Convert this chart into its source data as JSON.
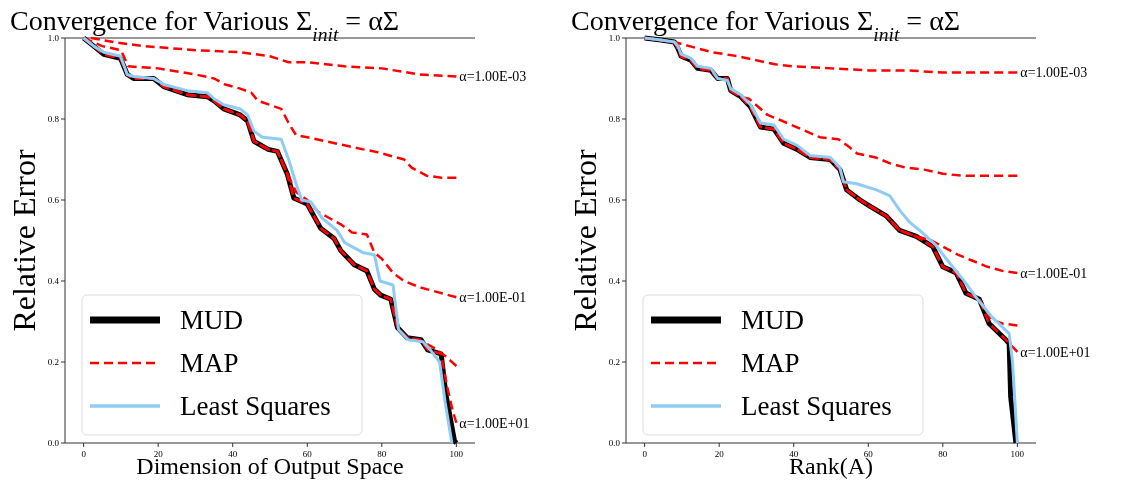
{
  "chart_data": [
    {
      "type": "line",
      "title": "Convergence for Various Σ$_{init}$ = αΣ",
      "xlabel": "Dimension of Output Space",
      "ylabel": "Relative Error",
      "xlim": [
        -5,
        105
      ],
      "ylim": [
        0,
        1
      ],
      "xticks": [
        0,
        20,
        40,
        60,
        80,
        100
      ],
      "yticks": [
        {
          "value": 0,
          "label": "0.0"
        },
        {
          "value": 0.2,
          "label": "0.2"
        },
        {
          "value": 0.4,
          "label": "0.4"
        },
        {
          "value": 0.6,
          "label": "0.6"
        },
        {
          "value": 0.8,
          "label": "0.8"
        },
        {
          "value": 1,
          "label": "1.0"
        }
      ],
      "grid": false,
      "legend": "bottom left",
      "series": [
        {
          "name": "MUD",
          "color": "#000000",
          "line_style": "solid",
          "x": [
            0,
            2.7,
            5.4,
            9.9,
            11.7,
            13.4,
            18.8,
            21.5,
            27.8,
            33.2,
            35,
            37.6,
            42,
            44,
            45.7,
            49.5,
            52,
            54.6,
            56.4,
            60,
            63.6,
            67.2,
            69,
            72.6,
            76,
            78,
            79.7,
            82.4,
            84.2,
            86.8,
            90.5,
            92.3,
            95.9,
            97.2,
            99.5,
            100
          ],
          "values": [
            1.0,
            0.98,
            0.96,
            0.95,
            0.91,
            0.9,
            0.9,
            0.88,
            0.86,
            0.855,
            0.845,
            0.825,
            0.81,
            0.795,
            0.745,
            0.725,
            0.72,
            0.665,
            0.605,
            0.59,
            0.53,
            0.505,
            0.475,
            0.44,
            0.425,
            0.38,
            0.365,
            0.355,
            0.285,
            0.26,
            0.255,
            0.23,
            0.22,
            0.12,
            0.005,
            0.0
          ]
        },
        {
          "name": "MAP",
          "color": "#ff0000",
          "line_style": "dashed",
          "x": [
            2,
            8,
            12,
            16,
            30,
            42,
            50,
            55,
            60,
            70,
            80,
            90,
            100
          ],
          "values": [
            1.0,
            0.99,
            0.985,
            0.98,
            0.97,
            0.965,
            0.955,
            0.94,
            0.94,
            0.93,
            0.925,
            0.91,
            0.905
          ]
        },
        {
          "color": "#ff0000",
          "line_style": "dashed",
          "x": [
            0,
            5,
            10,
            12,
            20,
            30,
            35,
            38,
            42,
            45,
            46.7,
            50,
            53,
            55,
            57,
            60,
            65,
            70,
            75,
            78,
            82,
            86,
            88,
            92,
            96,
            100
          ],
          "values": [
            1.0,
            0.98,
            0.97,
            0.93,
            0.925,
            0.91,
            0.9,
            0.885,
            0.875,
            0.865,
            0.845,
            0.835,
            0.825,
            0.79,
            0.76,
            0.755,
            0.745,
            0.735,
            0.725,
            0.72,
            0.71,
            0.7,
            0.68,
            0.66,
            0.655,
            0.655
          ]
        },
        {
          "color": "#ff0000",
          "line_style": "dashed",
          "x": [
            0,
            2.7,
            5.4,
            9.9,
            11.7,
            13.4,
            18.8,
            21.5,
            27.8,
            33.2,
            35,
            37.6,
            42,
            44,
            45.7,
            49.5,
            52,
            54.6,
            57,
            60,
            63,
            66,
            69,
            72,
            76,
            78,
            80,
            83,
            86,
            90,
            94,
            100
          ],
          "values": [
            1.0,
            0.98,
            0.96,
            0.95,
            0.91,
            0.9,
            0.9,
            0.88,
            0.86,
            0.855,
            0.845,
            0.825,
            0.81,
            0.795,
            0.745,
            0.725,
            0.72,
            0.665,
            0.62,
            0.6,
            0.57,
            0.555,
            0.54,
            0.52,
            0.515,
            0.47,
            0.455,
            0.42,
            0.4,
            0.385,
            0.375,
            0.36
          ]
        },
        {
          "color": "#ff0000",
          "line_style": "dashed",
          "x": [
            0,
            2.7,
            5.4,
            9.9,
            11.7,
            13.4,
            18.8,
            21.5,
            27.8,
            33.2,
            35,
            37.6,
            42,
            44,
            45.7,
            49.5,
            52,
            54.6,
            56.4,
            60,
            63.6,
            67.2,
            69,
            72.6,
            76,
            78,
            79.7,
            82.4,
            84.2,
            86.8,
            90,
            94,
            97,
            100
          ],
          "values": [
            1.0,
            0.98,
            0.96,
            0.95,
            0.91,
            0.9,
            0.9,
            0.88,
            0.86,
            0.855,
            0.845,
            0.825,
            0.81,
            0.795,
            0.745,
            0.725,
            0.72,
            0.665,
            0.605,
            0.59,
            0.53,
            0.505,
            0.475,
            0.44,
            0.425,
            0.38,
            0.365,
            0.355,
            0.285,
            0.26,
            0.255,
            0.235,
            0.215,
            0.19
          ]
        },
        {
          "color": "#ff0000",
          "line_style": "dashed",
          "x": [
            0,
            2.7,
            5.4,
            9.9,
            11.7,
            13.4,
            18.8,
            21.5,
            27.8,
            33.2,
            35,
            37.6,
            42,
            44,
            45.7,
            49.5,
            52,
            54.6,
            56.4,
            60,
            63.6,
            67.2,
            69,
            72.6,
            76,
            78,
            79.7,
            82.4,
            84.2,
            86.8,
            90.5,
            92.3,
            95.9,
            97.5,
            99,
            100
          ],
          "values": [
            1.0,
            0.98,
            0.96,
            0.95,
            0.91,
            0.9,
            0.9,
            0.88,
            0.86,
            0.855,
            0.845,
            0.825,
            0.81,
            0.795,
            0.745,
            0.725,
            0.72,
            0.665,
            0.605,
            0.59,
            0.53,
            0.505,
            0.475,
            0.44,
            0.425,
            0.38,
            0.365,
            0.355,
            0.285,
            0.26,
            0.255,
            0.23,
            0.22,
            0.14,
            0.08,
            0.05
          ]
        },
        {
          "name": "Least Squares",
          "color": "#8ecbf5",
          "line_style": "solid",
          "x": [
            0,
            2.7,
            5.4,
            9.9,
            11.7,
            13.4,
            18.8,
            21.5,
            27.8,
            33.2,
            35,
            37.6,
            42,
            44,
            45.7,
            48,
            53,
            55,
            57,
            58.5,
            61,
            64,
            68,
            70,
            72,
            75,
            78,
            79.5,
            83,
            84.5,
            87,
            91,
            93,
            95.5,
            97,
            98.8
          ],
          "values": [
            1.0,
            0.98,
            0.965,
            0.955,
            0.91,
            0.905,
            0.9,
            0.885,
            0.87,
            0.865,
            0.85,
            0.835,
            0.825,
            0.81,
            0.77,
            0.755,
            0.75,
            0.7,
            0.64,
            0.6,
            0.595,
            0.555,
            0.525,
            0.495,
            0.485,
            0.47,
            0.465,
            0.4,
            0.39,
            0.28,
            0.255,
            0.25,
            0.23,
            0.2,
            0.1,
            0.0
          ]
        }
      ],
      "annotations": [
        "α=1.00E-03",
        "α=1.00E-01",
        "α=1.00E+01"
      ]
    },
    {
      "type": "line",
      "title": "Convergence for Various Σ$_{init}$ = αΣ",
      "xlabel": "Rank(A)",
      "ylabel": "Relative Error",
      "xlim": [
        -5,
        105
      ],
      "ylim": [
        0,
        1
      ],
      "xticks": [
        0,
        20,
        40,
        60,
        80,
        100
      ],
      "yticks": [
        {
          "value": 0,
          "label": "0.0"
        },
        {
          "value": 0.2,
          "label": "0.2"
        },
        {
          "value": 0.4,
          "label": "0.4"
        },
        {
          "value": 0.6,
          "label": "0.6"
        },
        {
          "value": 0.8,
          "label": "0.8"
        },
        {
          "value": 1,
          "label": "1.0"
        }
      ],
      "grid": false,
      "legend": "bottom left",
      "series": [
        {
          "name": "MUD",
          "color": "#000000",
          "line_style": "solid",
          "x": [
            0,
            4.4,
            8,
            8.9,
            9.8,
            12.4,
            14.2,
            17.8,
            19.6,
            22.2,
            23.1,
            25.8,
            28.4,
            31.1,
            34.7,
            37.3,
            40.9,
            44.4,
            49.8,
            52.4,
            54.2,
            57.8,
            60.4,
            64.9,
            68.4,
            72.9,
            77.3,
            80,
            83.6,
            86.2,
            89.8,
            92.4,
            96.9,
            97.8,
            98.2,
            99.6
          ],
          "values": [
            1.0,
            0.995,
            0.99,
            0.975,
            0.955,
            0.945,
            0.925,
            0.92,
            0.9,
            0.9,
            0.87,
            0.855,
            0.83,
            0.78,
            0.775,
            0.74,
            0.725,
            0.705,
            0.7,
            0.675,
            0.625,
            0.6,
            0.585,
            0.56,
            0.525,
            0.51,
            0.485,
            0.435,
            0.42,
            0.37,
            0.355,
            0.295,
            0.255,
            0.245,
            0.115,
            0.0
          ]
        },
        {
          "name": "MAP",
          "color": "#ff0000",
          "line_style": "dashed",
          "x": [
            0,
            8,
            12,
            18,
            25,
            30,
            35,
            40,
            50,
            60,
            70,
            80,
            100
          ],
          "values": [
            1.0,
            0.99,
            0.98,
            0.965,
            0.955,
            0.945,
            0.935,
            0.93,
            0.925,
            0.92,
            0.92,
            0.915,
            0.915
          ]
        },
        {
          "color": "#ff0000",
          "line_style": "dashed",
          "x": [
            0,
            4.4,
            8,
            8.9,
            9.8,
            12.4,
            14.2,
            17.8,
            19.6,
            22.2,
            23.1,
            25.8,
            28,
            33,
            37,
            42,
            47,
            52,
            55,
            57,
            62,
            66,
            70,
            75,
            80,
            85,
            100
          ],
          "values": [
            1.0,
            0.995,
            0.99,
            0.975,
            0.955,
            0.945,
            0.925,
            0.92,
            0.9,
            0.9,
            0.87,
            0.855,
            0.85,
            0.81,
            0.795,
            0.775,
            0.755,
            0.75,
            0.73,
            0.715,
            0.705,
            0.69,
            0.68,
            0.675,
            0.665,
            0.66,
            0.66
          ]
        },
        {
          "color": "#ff0000",
          "line_style": "dashed",
          "x": [
            0,
            4.4,
            8,
            8.9,
            9.8,
            12.4,
            14.2,
            17.8,
            19.6,
            22.2,
            23.1,
            25.8,
            28.4,
            31.1,
            34.7,
            37.3,
            40.9,
            44.4,
            49.8,
            52.4,
            54.2,
            57.8,
            60.4,
            64.9,
            68.4,
            72.9,
            77,
            80,
            84,
            88,
            92,
            96,
            100
          ],
          "values": [
            1.0,
            0.995,
            0.99,
            0.975,
            0.955,
            0.945,
            0.925,
            0.92,
            0.9,
            0.9,
            0.87,
            0.855,
            0.83,
            0.78,
            0.775,
            0.74,
            0.725,
            0.705,
            0.7,
            0.675,
            0.625,
            0.6,
            0.585,
            0.56,
            0.525,
            0.51,
            0.5,
            0.485,
            0.465,
            0.45,
            0.435,
            0.425,
            0.42
          ]
        },
        {
          "color": "#ff0000",
          "line_style": "dashed",
          "x": [
            0,
            4.4,
            8,
            8.9,
            9.8,
            12.4,
            14.2,
            17.8,
            19.6,
            22.2,
            23.1,
            25.8,
            28.4,
            31.1,
            34.7,
            37.3,
            40.9,
            44.4,
            49.8,
            52.4,
            54.2,
            57.8,
            60.4,
            64.9,
            68.4,
            72.9,
            77.3,
            80,
            83.6,
            86.2,
            89.8,
            93,
            96,
            100
          ],
          "values": [
            1.0,
            0.995,
            0.99,
            0.975,
            0.955,
            0.945,
            0.925,
            0.92,
            0.9,
            0.9,
            0.87,
            0.855,
            0.83,
            0.78,
            0.775,
            0.74,
            0.725,
            0.705,
            0.7,
            0.675,
            0.625,
            0.6,
            0.585,
            0.56,
            0.525,
            0.51,
            0.485,
            0.435,
            0.42,
            0.37,
            0.355,
            0.305,
            0.295,
            0.29
          ]
        },
        {
          "color": "#ff0000",
          "line_style": "dashed",
          "x": [
            0,
            4.4,
            8,
            8.9,
            9.8,
            12.4,
            14.2,
            17.8,
            19.6,
            22.2,
            23.1,
            25.8,
            28.4,
            31.1,
            34.7,
            37.3,
            40.9,
            44.4,
            49.8,
            52.4,
            54.2,
            57.8,
            60.4,
            64.9,
            68.4,
            72.9,
            77.3,
            80,
            83.6,
            86.2,
            89.8,
            92.4,
            96.9,
            97.8,
            99,
            100
          ],
          "values": [
            1.0,
            0.995,
            0.99,
            0.975,
            0.955,
            0.945,
            0.925,
            0.92,
            0.9,
            0.9,
            0.87,
            0.855,
            0.83,
            0.78,
            0.775,
            0.74,
            0.725,
            0.705,
            0.7,
            0.675,
            0.625,
            0.6,
            0.585,
            0.56,
            0.525,
            0.51,
            0.485,
            0.435,
            0.42,
            0.37,
            0.355,
            0.295,
            0.255,
            0.245,
            0.235,
            0.225
          ]
        },
        {
          "name": "Least Squares",
          "color": "#8ecbf5",
          "line_style": "solid",
          "x": [
            0,
            4.4,
            8,
            8.9,
            9.8,
            12.4,
            14.2,
            17.8,
            19.6,
            22.2,
            23.1,
            25.8,
            28.4,
            31.1,
            34.7,
            37.3,
            40.9,
            44.4,
            49.8,
            52.4,
            53.3,
            56.9,
            62.2,
            65.8,
            68.4,
            71.1,
            73.8,
            78,
            80.9,
            85.3,
            88.9,
            93.3,
            97.8,
            98.7,
            100
          ],
          "values": [
            1.0,
            0.995,
            0.99,
            0.98,
            0.96,
            0.95,
            0.93,
            0.925,
            0.9,
            0.895,
            0.875,
            0.86,
            0.835,
            0.79,
            0.785,
            0.75,
            0.735,
            0.71,
            0.705,
            0.68,
            0.645,
            0.64,
            0.625,
            0.61,
            0.575,
            0.545,
            0.525,
            0.49,
            0.455,
            0.405,
            0.36,
            0.31,
            0.27,
            0.2,
            0.0
          ]
        }
      ],
      "annotations": [
        "α=1.00E-03",
        "α=1.00E-01",
        "α=1.00E+01"
      ]
    }
  ]
}
